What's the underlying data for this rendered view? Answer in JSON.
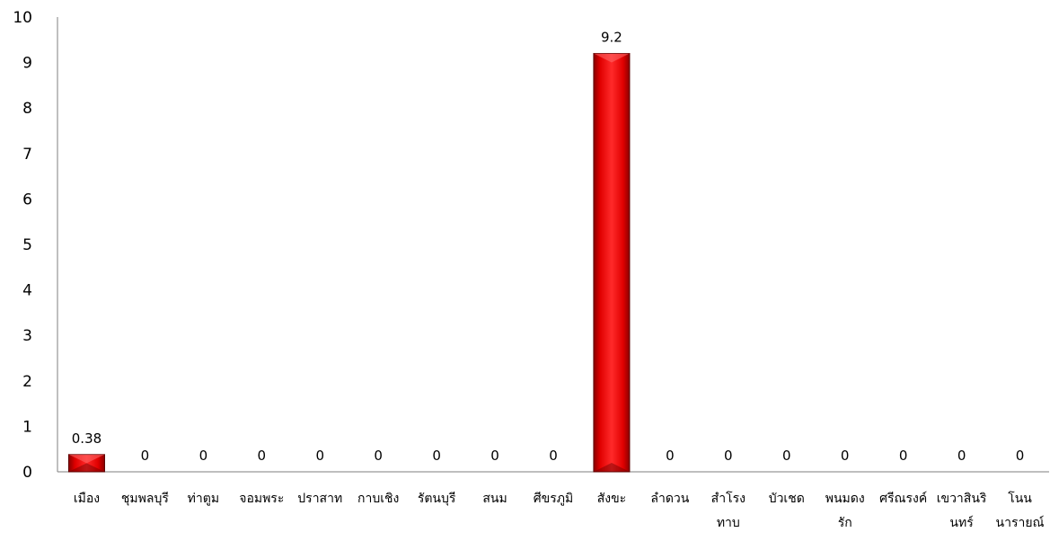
{
  "chart_data": {
    "type": "bar",
    "title": "",
    "xlabel": "",
    "ylabel": "",
    "ylim": [
      0,
      10
    ],
    "yticks": [
      "0",
      "1",
      "2",
      "3",
      "4",
      "5",
      "6",
      "7",
      "8",
      "9",
      "10"
    ],
    "grid": false,
    "legend": "none",
    "bar_color": "#e00000",
    "categories": [
      [
        "เมือง"
      ],
      [
        "ชุมพลบุรี"
      ],
      [
        "ท่าตูม"
      ],
      [
        "จอมพระ"
      ],
      [
        "ปราสาท"
      ],
      [
        "กาบเชิง"
      ],
      [
        "รัตนบุรี"
      ],
      [
        "สนม"
      ],
      [
        "ศีขรภูมิ"
      ],
      [
        "สังขะ"
      ],
      [
        "ลำดวน"
      ],
      [
        "สำโรง",
        "ทาบ"
      ],
      [
        "บัวเชด"
      ],
      [
        "พนมดง",
        "รัก"
      ],
      [
        "ศรีณรงค์"
      ],
      [
        "เขวาสินริ",
        "นทร์"
      ],
      [
        "โนน",
        "นารายณ์"
      ]
    ],
    "values": [
      0.38,
      0,
      0,
      0,
      0,
      0,
      0,
      0,
      0,
      9.2,
      0,
      0,
      0,
      0,
      0,
      0,
      0
    ],
    "data_labels": [
      "0.38",
      "0",
      "0",
      "0",
      "0",
      "0",
      "0",
      "0",
      "0",
      "9.2",
      "0",
      "0",
      "0",
      "0",
      "0",
      "0",
      "0"
    ]
  }
}
